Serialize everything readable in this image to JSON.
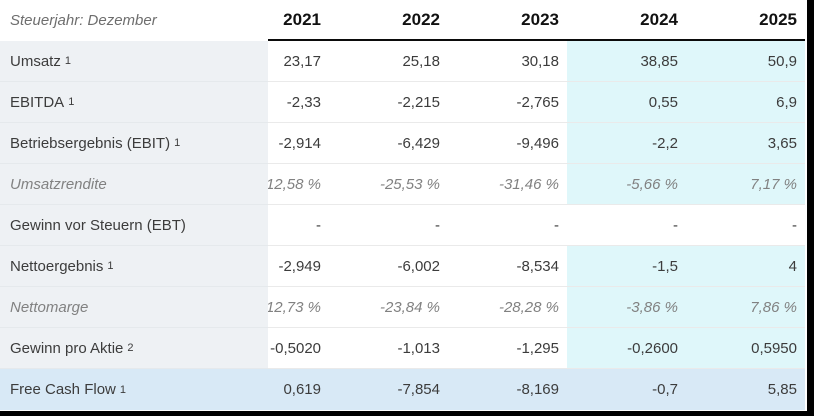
{
  "table": {
    "title": "Steuerjahr: Dezember",
    "years": [
      "2021",
      "2022",
      "2023",
      "2024",
      "2025"
    ],
    "rows": [
      {
        "label": "Umsatz",
        "footnote": "1",
        "values": [
          "23,17",
          "25,18",
          "30,18",
          "38,85",
          "50,9"
        ]
      },
      {
        "label": "EBITDA",
        "footnote": "1",
        "values": [
          "-2,33",
          "-2,215",
          "-2,765",
          "0,55",
          "6,9"
        ]
      },
      {
        "label": "Betriebsergebnis (EBIT)",
        "footnote": "1",
        "values": [
          "-2,914",
          "-6,429",
          "-9,496",
          "-2,2",
          "3,65"
        ]
      },
      {
        "label": "Umsatzrendite",
        "values": [
          "-12,58 %",
          "-25,53 %",
          "-31,46 %",
          "-5,66 %",
          "7,17 %"
        ]
      },
      {
        "label": "Gewinn vor Steuern (EBT)",
        "values": [
          "-",
          "-",
          "-",
          "-",
          "-"
        ]
      },
      {
        "label": "Nettoergebnis",
        "footnote": "1",
        "values": [
          "-2,949",
          "-6,002",
          "-8,534",
          "-1,5",
          "4"
        ]
      },
      {
        "label": "Nettomarge",
        "values": [
          "-12,73 %",
          "-23,84 %",
          "-28,28 %",
          "-3,86 %",
          "7,86 %"
        ]
      },
      {
        "label": "Gewinn pro Aktie",
        "footnote": "2",
        "values": [
          "-0,5020",
          "-1,013",
          "-1,295",
          "-0,2600",
          "0,5950"
        ]
      },
      {
        "label": "Free Cash Flow",
        "footnote": "1",
        "values": [
          "0,619",
          "-7,854",
          "-8,169",
          "-0,7",
          "5,85"
        ]
      }
    ],
    "colors": {
      "forecast_highlight": "#dff7fa",
      "free_cash_flow_row": "#d8e9f6",
      "label_column_bg": "#eef1f4",
      "frame_border": "#000000"
    }
  }
}
